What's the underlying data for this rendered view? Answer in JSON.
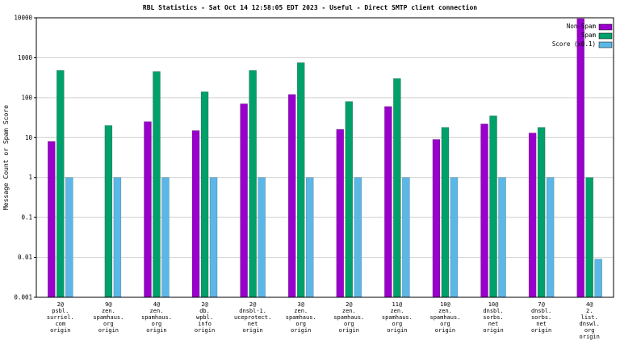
{
  "title": "RBL Statistics - Sat Oct 14 12:58:05 EDT 2023 - Useful - Direct SMTP client connection",
  "ylabel": "Message Count or Spam Score",
  "chart_data": {
    "type": "bar",
    "scale": "log",
    "ylim": [
      0.001,
      10000
    ],
    "y_ticks": [
      "10000",
      "1000",
      "100",
      "10",
      "1",
      "0.1",
      "0.01",
      "0.001"
    ],
    "grid": true,
    "legend_position": "top-right",
    "categories": [
      [
        "2@",
        "psbl.",
        "surriel.",
        "com",
        "origin"
      ],
      [
        "9@",
        "zen.",
        "spamhaus.",
        "org",
        "origin"
      ],
      [
        "4@",
        "zen.",
        "spamhaus.",
        "org",
        "origin"
      ],
      [
        "2@",
        "db.",
        "wpbl.",
        "info",
        "origin"
      ],
      [
        "2@",
        "dnsbl-1.",
        "uceprotect.",
        "net",
        "origin"
      ],
      [
        "3@",
        "zen.",
        "spamhaus.",
        "org",
        "origin"
      ],
      [
        "2@",
        "zen.",
        "spamhaus.",
        "org",
        "origin"
      ],
      [
        "11@",
        "zen.",
        "spamhaus.",
        "org",
        "origin"
      ],
      [
        "10@",
        "zen.",
        "spamhaus.",
        "org",
        "origin"
      ],
      [
        "10@",
        "dnsbl.",
        "sorbs.",
        "net",
        "origin"
      ],
      [
        "7@",
        "dnsbl.",
        "sorbs.",
        "net",
        "origin"
      ],
      [
        "4@",
        "2.",
        "list.",
        "dnswl.",
        "org",
        "origin"
      ]
    ],
    "series": [
      {
        "name": "Non-Spam",
        "color": "#9900cc",
        "values": [
          8,
          0,
          25,
          15,
          70,
          120,
          16,
          60,
          9,
          22,
          13,
          9500
        ]
      },
      {
        "name": "Spam",
        "color": "#00a06a",
        "values": [
          480,
          20,
          450,
          140,
          480,
          750,
          80,
          300,
          18,
          35,
          18,
          1
        ]
      },
      {
        "name": "Score (x0.1)",
        "color": "#5bb8e6",
        "values": [
          1,
          1,
          1,
          1,
          1,
          1,
          1,
          1,
          1,
          1,
          1,
          0.009
        ]
      }
    ]
  }
}
